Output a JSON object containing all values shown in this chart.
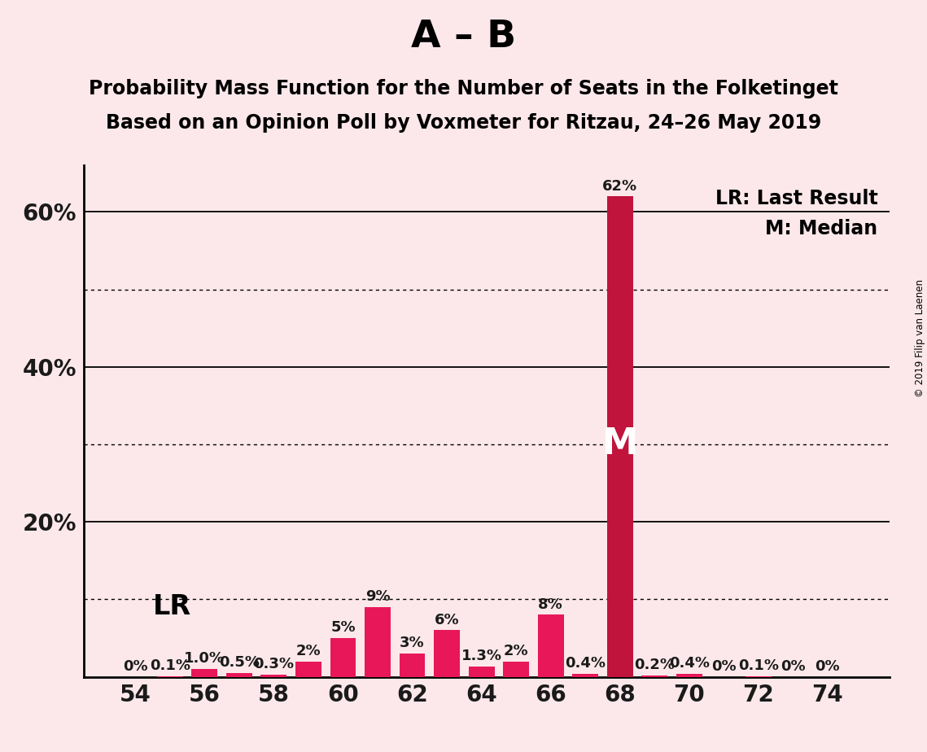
{
  "title_main": "A – B",
  "subtitle1": "Probability Mass Function for the Number of Seats in the Folketinget",
  "subtitle2": "Based on an Opinion Poll by Voxmeter for Ritzau, 24–26 May 2019",
  "copyright": "© 2019 Filip van Laenen",
  "background_color": "#fce8eb",
  "seats": [
    54,
    55,
    56,
    57,
    58,
    59,
    60,
    61,
    62,
    63,
    64,
    65,
    66,
    67,
    68,
    69,
    70,
    71,
    72,
    73,
    74
  ],
  "probabilities": [
    0.0,
    0.1,
    1.0,
    0.5,
    0.3,
    2.0,
    5.0,
    9.0,
    3.0,
    6.0,
    1.3,
    2.0,
    8.0,
    0.4,
    62.0,
    0.2,
    0.4,
    0.0,
    0.1,
    0.0,
    0.0
  ],
  "labels": [
    "0%",
    "0.1%",
    "1.0%",
    "0.5%",
    "0.3%",
    "2%",
    "5%",
    "9%",
    "3%",
    "6%",
    "1.3%",
    "2%",
    "8%",
    "0.4%",
    "62%",
    "0.2%",
    "0.4%",
    "0%",
    "0.1%",
    "0%",
    "0%"
  ],
  "bar_color_default": "#e8175a",
  "bar_color_highlight": "#c0143c",
  "median_seat": 68,
  "lr_seat": 56,
  "lr_label": "LR",
  "lr_legend": "LR: Last Result",
  "median_legend": "M: Median",
  "ylim_max": 66,
  "ytick_positions": [
    20,
    40,
    60
  ],
  "ytick_labels": [
    "20%",
    "40%",
    "60%"
  ],
  "solid_yticks": [
    20,
    40,
    60
  ],
  "dotted_yticks": [
    10,
    30,
    50
  ],
  "xtick_positions": [
    54,
    56,
    58,
    60,
    62,
    64,
    66,
    68,
    70,
    72,
    74
  ],
  "title_fontsize": 34,
  "subtitle_fontsize": 17,
  "axis_tick_fontsize": 20,
  "bar_label_fontsize": 13,
  "legend_fontsize": 17,
  "lr_fontsize": 24
}
